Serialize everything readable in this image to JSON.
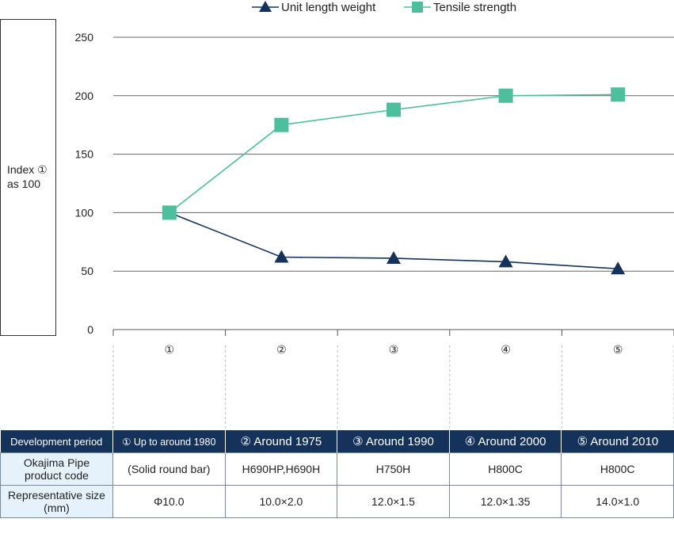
{
  "chart_data": {
    "type": "line",
    "ylabel": "Index ① as 100",
    "ylabel_lines": [
      "Index ①",
      "as 100"
    ],
    "ylim": [
      0,
      250
    ],
    "yticks": [
      0,
      50,
      100,
      150,
      200,
      250
    ],
    "grid": "horizontal",
    "legend_position": "top",
    "categories": [
      "①",
      "②",
      "③",
      "④",
      "⑤"
    ],
    "series": [
      {
        "name": "Unit length weight",
        "marker": "triangle",
        "color": "#15335a",
        "values": [
          100,
          62,
          61,
          58,
          52
        ]
      },
      {
        "name": "Tensile strength",
        "marker": "square",
        "color": "#4dbf9c",
        "values": [
          100,
          175,
          188,
          200,
          201
        ]
      }
    ]
  },
  "table": {
    "headers": [
      "Development period",
      "① Up to around 1980",
      "② Around 1975",
      "③ Around 1990",
      "④ Around 2000",
      "⑤ Around 2010"
    ],
    "rows": [
      {
        "label_lines": [
          "Okajima Pipe",
          "product code"
        ],
        "cells": [
          "(Solid round bar)",
          "H690HP,H690H",
          "H750H",
          "H800C",
          "H800C"
        ]
      },
      {
        "label_lines": [
          "Representative size",
          "(mm)"
        ],
        "cells": [
          "Φ10.0",
          "10.0×2.0",
          "12.0×1.5",
          "12.0×1.35",
          "14.0×1.0"
        ]
      }
    ]
  },
  "colors": {
    "header_bg": "#15335a",
    "row_header_bg": "#e6f2fb"
  }
}
